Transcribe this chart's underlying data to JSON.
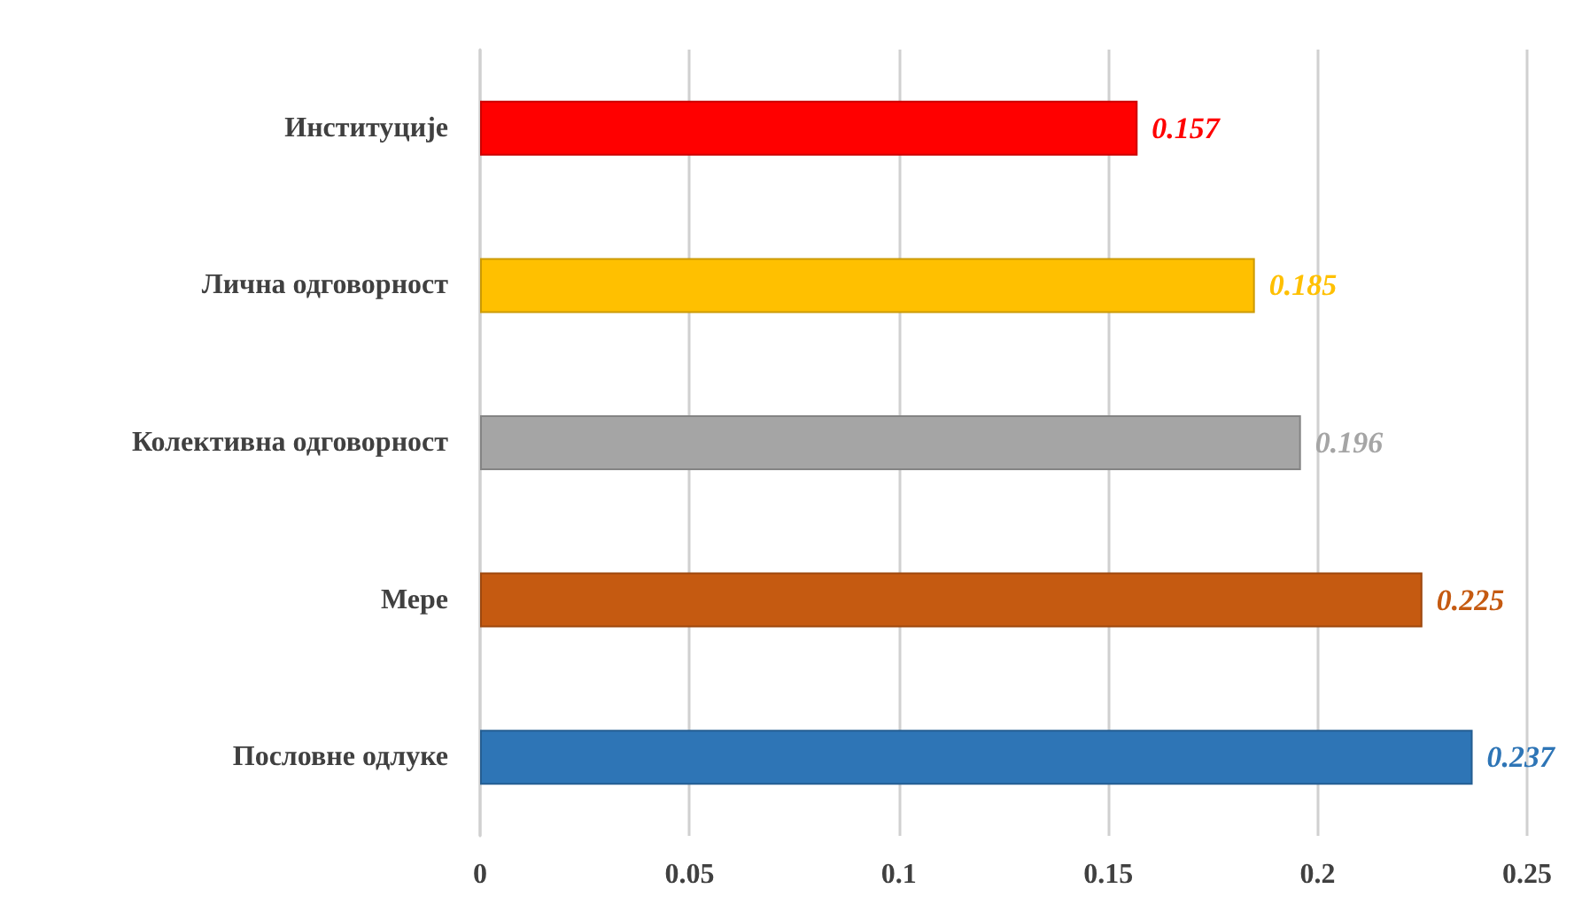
{
  "chart_data": {
    "type": "bar",
    "orientation": "horizontal",
    "categories": [
      "Институције",
      "Лична одговорност",
      "Колективна одговорност",
      "Мере",
      "Пословне одлуке"
    ],
    "values": [
      0.157,
      0.185,
      0.196,
      0.225,
      0.237
    ],
    "colors": [
      "#ff0000",
      "#ffc000",
      "#a5a5a5",
      "#c55a11",
      "#2e75b6"
    ],
    "xlim": [
      0,
      0.25
    ],
    "xticks": [
      0,
      0.05,
      0.1,
      0.15,
      0.2,
      0.25
    ],
    "grid": "x",
    "data_labels": true
  }
}
